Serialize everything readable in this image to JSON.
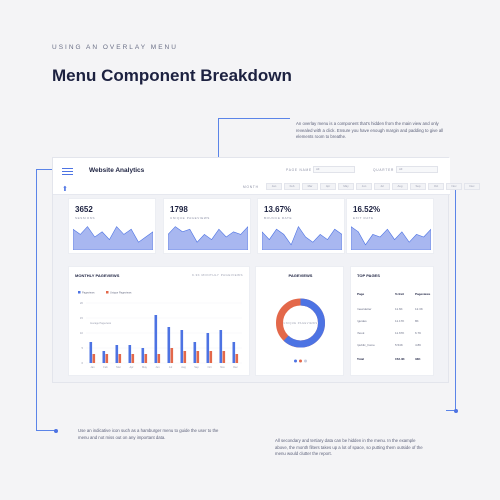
{
  "header": {
    "eyebrow": "USING AN OVERLAY MENU",
    "title": "Menu Component Breakdown"
  },
  "notes": {
    "top": "An overlay menu is a component that's hidden from the main view and only revealed with a click. Ensure you have enough margin and padding to give all elements room to breathe.",
    "bottom_left": "Use an indicative icon such as a hamburger menu to guide the user to the menu and not miss out on any important data.",
    "bottom_right": "All secondary and tertiary data can be hidden in the menu. In the example above, the month filters takes up a lot of space, so putting them outside of the menu would clutter the report."
  },
  "dashboard": {
    "title": "Website Analytics",
    "filters": {
      "page_name_label": "PAGE NAME",
      "page_name_value": "All",
      "quarter_label": "QUARTER",
      "quarter_value": "All",
      "months_label": "MONTH",
      "months": [
        "Jan",
        "Feb",
        "Mar",
        "Apr",
        "May",
        "Jun",
        "Jul",
        "Aug",
        "Sep",
        "Oct",
        "Nov",
        "Dec"
      ]
    },
    "stats": [
      {
        "value": "3652",
        "label": "SESSIONS"
      },
      {
        "value": "1798",
        "label": "UNIQUE PAGEVIEWS"
      },
      {
        "value": "13.67%",
        "label": "BOUNCE RATE"
      },
      {
        "value": "16.52%",
        "label": "EXIT RATE"
      }
    ],
    "monthly": {
      "title": "MONTHLY PAGEVIEWS",
      "subtitle": "9.3K MONTHLY PAGEVIEWS",
      "legend": [
        "Pageviews",
        "Unique Pageviews"
      ],
      "avg_label": "Average Pageviews"
    },
    "donut": {
      "title": "PAGEVIEWS",
      "center": "UNIQUE PAGEVIEWS"
    },
    "top_pages": {
      "title": "TOP PAGES",
      "columns": [
        "Page",
        "% Exit",
        "Pageviews"
      ],
      "rows": [
        [
          "/newsletter",
          "11.6K",
          "12.3K"
        ],
        [
          "/guides",
          "11.17K",
          "8K"
        ],
        [
          "/hook",
          "11.67K",
          "6.7K"
        ],
        [
          "/public_home",
          "5.54K",
          "4.8K"
        ]
      ],
      "total": [
        "Total",
        "152.4K",
        "34K"
      ]
    }
  },
  "chart_data": {
    "type": "bar",
    "categories": [
      "Jan",
      "Feb",
      "Mar",
      "Apr",
      "May",
      "Jun",
      "Jul",
      "Aug",
      "Sep",
      "Oct",
      "Nov",
      "Dec"
    ],
    "series": [
      {
        "name": "Pageviews",
        "values": [
          7,
          4,
          6,
          6,
          5,
          16,
          12,
          11,
          7,
          10,
          11,
          7
        ]
      },
      {
        "name": "Unique Pageviews",
        "values": [
          3,
          3,
          3,
          3,
          3,
          3,
          5,
          4,
          4,
          4,
          4,
          3
        ]
      }
    ],
    "ylim": [
      0,
      20
    ],
    "yticks": [
      "0",
      "5",
      "10",
      "15",
      "20"
    ],
    "legend_position": "top-left",
    "colors": {
      "Pageviews": "#4d73e3",
      "Unique Pageviews": "#e3684a"
    }
  },
  "sparklines": [
    [
      8,
      6,
      9,
      5,
      7,
      4,
      9,
      6,
      8,
      3,
      5,
      7
    ],
    [
      6,
      9,
      7,
      8,
      3,
      6,
      4,
      8,
      5,
      7,
      6,
      9
    ],
    [
      7,
      4,
      8,
      6,
      2,
      9,
      5,
      3,
      6,
      4,
      8,
      6
    ],
    [
      9,
      7,
      2,
      6,
      5,
      8,
      4,
      7,
      3,
      6,
      5,
      8
    ]
  ],
  "donut_values": {
    "Pageviews": 62,
    "Unique Pageviews": 38
  },
  "colors": {
    "accent": "#4d73e3",
    "secondary": "#e3684a",
    "area_fill": "#a8b7f0"
  }
}
